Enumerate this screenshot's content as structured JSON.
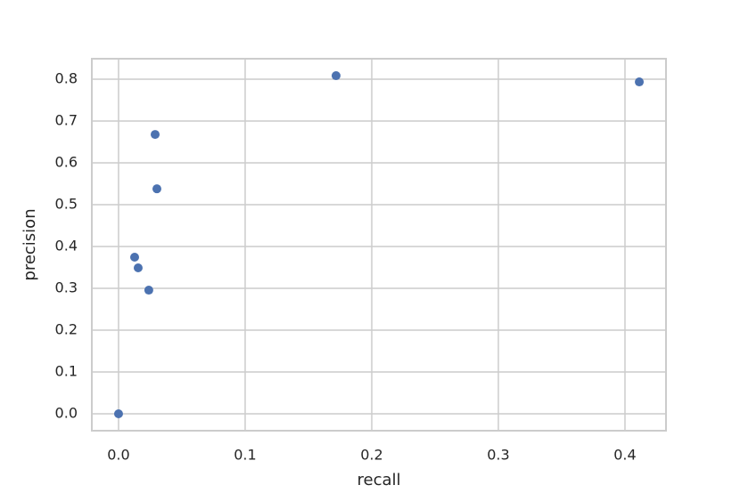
{
  "chart_data": {
    "type": "scatter",
    "xlabel": "recall",
    "ylabel": "precision",
    "x": [
      0.0,
      0.1718,
      0.4113,
      0.0289,
      0.0303,
      0.0127,
      0.0155,
      0.0239
    ],
    "values": [
      0.0,
      0.8085,
      0.7936,
      0.668,
      0.538,
      0.3745,
      0.349,
      0.2957
    ],
    "color": "#4c72b0",
    "xlim": [
      -0.0211,
      0.4324
    ],
    "ylim": [
      -0.0404,
      0.849
    ],
    "xticks": [
      {
        "value": 0,
        "label": "0.0"
      },
      0.1,
      0.2,
      0.3,
      0.4
    ],
    "yticks": [
      {
        "value": 0,
        "label": "0.0"
      },
      0.1,
      0.2,
      0.3,
      0.4,
      0.5,
      0.6,
      0.7,
      0.8
    ],
    "grid": true
  }
}
